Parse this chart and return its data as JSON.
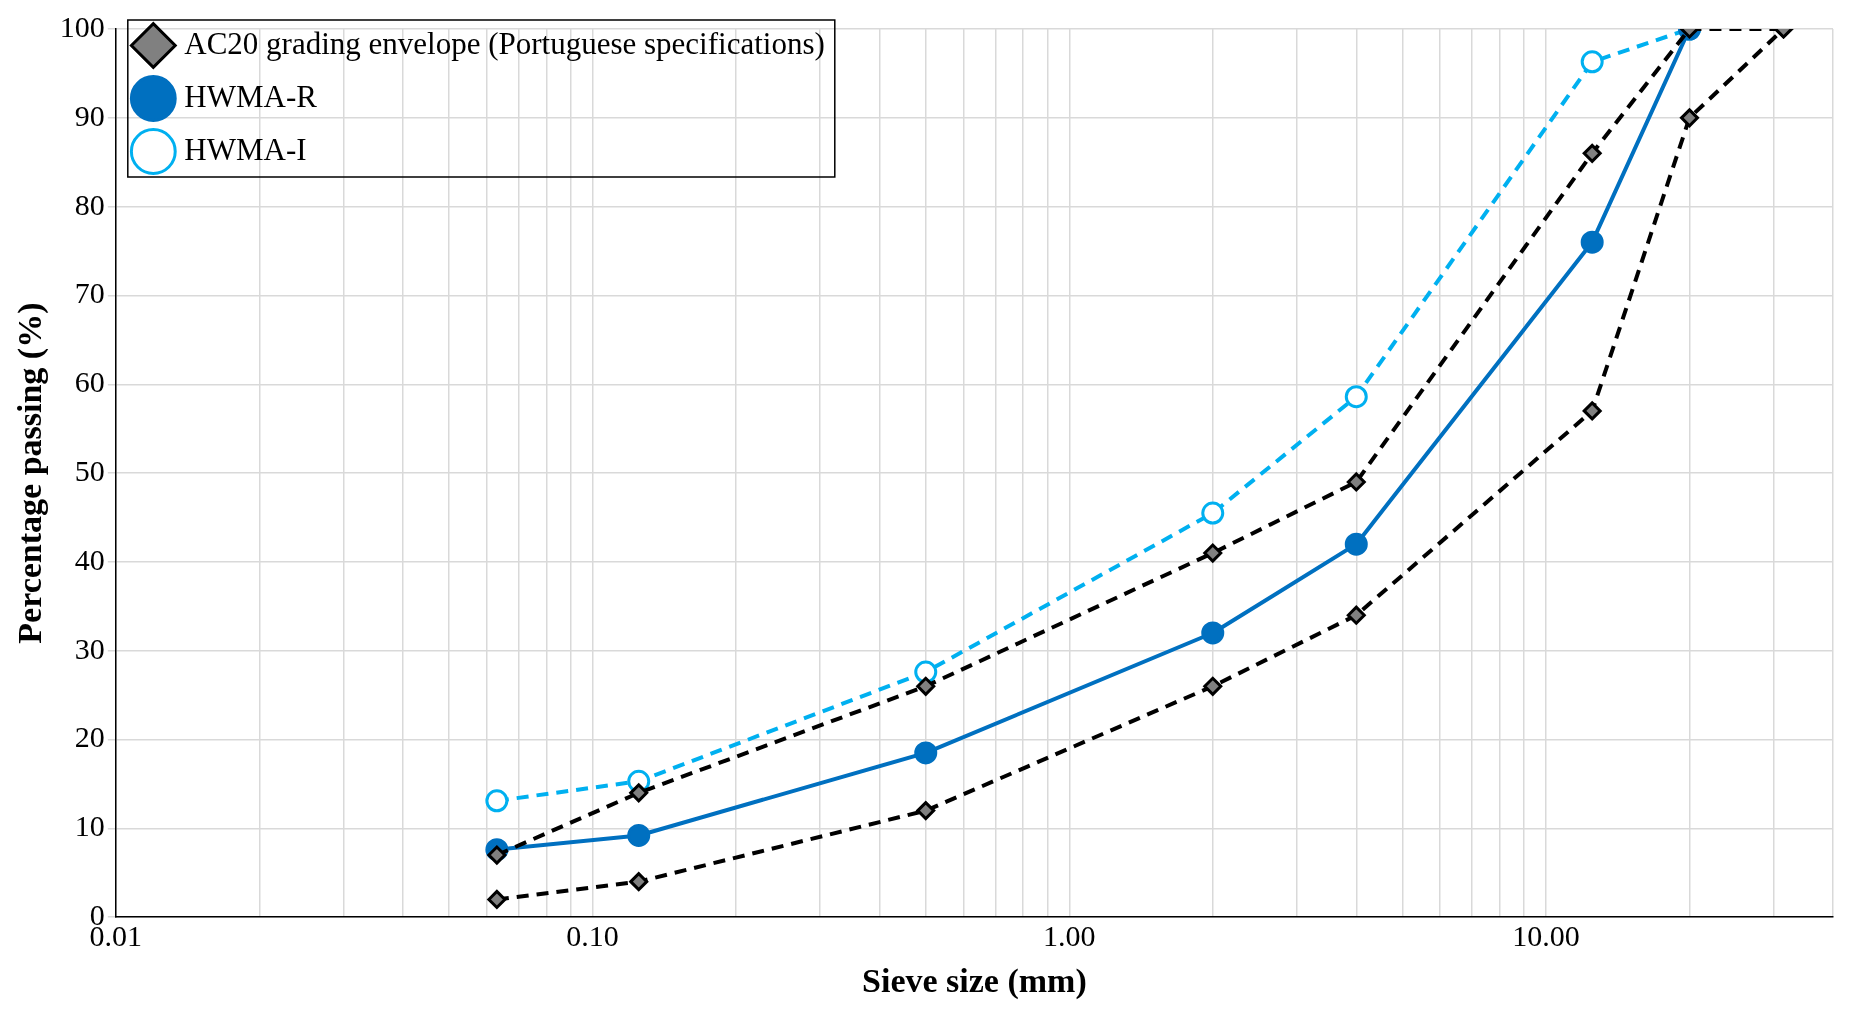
{
  "chart_data": {
    "type": "line",
    "xlabel": "Sieve size (mm)",
    "ylabel": "Percentage passing (%)",
    "log": "x",
    "grid": true,
    "legend": "top left",
    "xlim": [
      0.01,
      40
    ],
    "xticks": [
      {
        "value": 0.01,
        "label": "0.01"
      },
      {
        "value": 0.02,
        "label": null
      },
      {
        "value": 0.03,
        "label": null
      },
      {
        "value": 0.04,
        "label": null
      },
      {
        "value": 0.05,
        "label": null
      },
      {
        "value": 0.06,
        "label": null
      },
      {
        "value": 0.07,
        "label": null
      },
      {
        "value": 0.08,
        "label": null
      },
      {
        "value": 0.09,
        "label": null
      },
      {
        "value": 0.1,
        "label": "0.10"
      },
      {
        "value": 0.2,
        "label": null
      },
      {
        "value": 0.3,
        "label": null
      },
      {
        "value": 0.4,
        "label": null
      },
      {
        "value": 0.5,
        "label": null
      },
      {
        "value": 0.6,
        "label": null
      },
      {
        "value": 0.7,
        "label": null
      },
      {
        "value": 0.8,
        "label": null
      },
      {
        "value": 0.9,
        "label": null
      },
      {
        "value": 1,
        "label": "1.00"
      },
      {
        "value": 2,
        "label": null
      },
      {
        "value": 3,
        "label": null
      },
      {
        "value": 4,
        "label": null
      },
      {
        "value": 5,
        "label": null
      },
      {
        "value": 6,
        "label": null
      },
      {
        "value": 7,
        "label": null
      },
      {
        "value": 8,
        "label": null
      },
      {
        "value": 9,
        "label": null
      },
      {
        "value": 10,
        "label": "10.00"
      },
      {
        "value": 20,
        "label": null
      },
      {
        "value": 30,
        "label": null
      },
      {
        "value": 40,
        "label": null
      }
    ],
    "ylim": [
      0,
      100
    ],
    "yticks": [
      0,
      10,
      20,
      30,
      40,
      50,
      60,
      70,
      80,
      90,
      100
    ],
    "x": [
      0.063,
      0.125,
      0.5,
      2,
      4,
      12.5,
      20,
      31.5
    ],
    "series": [
      {
        "name": "AC20 grading envelope (Portuguese specifications)",
        "color": "#000000",
        "marker": "diamond",
        "line_style": "dashed",
        "values": [
          7,
          14,
          26,
          41,
          49,
          86,
          100,
          100
        ]
      },
      {
        "color": "#000000",
        "marker": "diamond",
        "line_style": "dashed",
        "values": [
          2,
          4,
          12,
          26,
          34,
          57,
          90,
          100
        ]
      },
      {
        "name": "HWMA-R",
        "color": "#0070c0",
        "marker": "circle",
        "line_style": "solid",
        "values": [
          7.6,
          9.2,
          18.5,
          32,
          42,
          76,
          100,
          null
        ]
      },
      {
        "name": "HWMA-I",
        "color": "#00b0f0",
        "marker": "circle",
        "line_style": "dashed",
        "values": [
          13.1,
          15.3,
          27.6,
          45.5,
          58.6,
          96.3,
          100,
          null
        ]
      }
    ]
  }
}
